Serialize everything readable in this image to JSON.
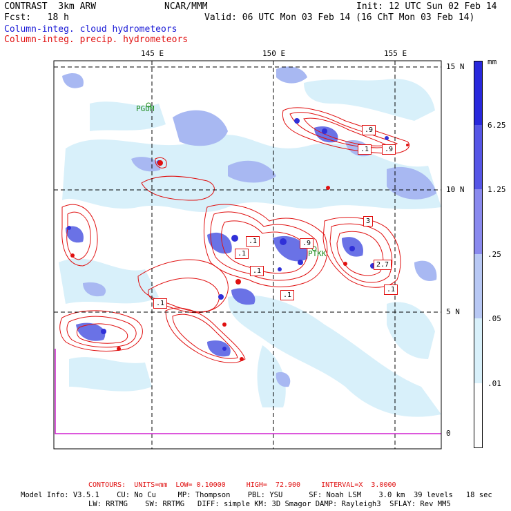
{
  "header": {
    "left1": "CONTRAST  3km ARW",
    "center1": "NCAR/MMM",
    "right1": "Init: 12 UTC Sun 02 Feb 14",
    "left2": "Fcst:   18 h",
    "right2": "Valid: 06 UTC Mon 03 Feb 14 (16 ChT Mon 03 Feb 14)",
    "legend_blue": "Column-integ. cloud hydrometeors",
    "legend_red": "Column-integ. precip. hydrometeors"
  },
  "axes": {
    "lon_labels": [
      "145 E",
      "150 E",
      "155 E"
    ],
    "lat_labels": [
      "15 N",
      "10 N",
      "5 N",
      "0"
    ]
  },
  "stations": [
    {
      "name": "PGUM"
    },
    {
      "name": "PTKK"
    }
  ],
  "contour_labels": [
    ".9",
    ".1",
    ".9",
    "3",
    ".1",
    ".9",
    ".1",
    "2.7",
    ".1",
    ".1",
    ".1",
    ".1"
  ],
  "colorbar": {
    "unit": "mm",
    "levels": [
      "6.25",
      "1.25",
      ".25",
      ".05",
      ".01"
    ],
    "colors": [
      "#2828dc",
      "#5656e6",
      "#8a8aee",
      "#b8c8f4",
      "#d8f0fa",
      "#ffffff"
    ]
  },
  "footer": {
    "contours": "CONTOURS:  UNITS=mm  LOW= 0.10000     HIGH=  72.900     INTERVAL=X  3.0000",
    "model1": "Model Info: V3.5.1    CU: No Cu     MP: Thompson    PBL: YSU      SF: Noah LSM    3.0 km  39 levels   18 sec",
    "model2": "LW: RRTMG    SW: RRTMG   DIFF: simple KM: 3D Smagor DAMP: Rayleigh3  SFLAY: Rev MM5"
  },
  "colors": {
    "cloud": "#8a9ee8",
    "precip": "#e01010",
    "title_blue": "#1a1ad6",
    "purple_line": "#d020d0"
  }
}
